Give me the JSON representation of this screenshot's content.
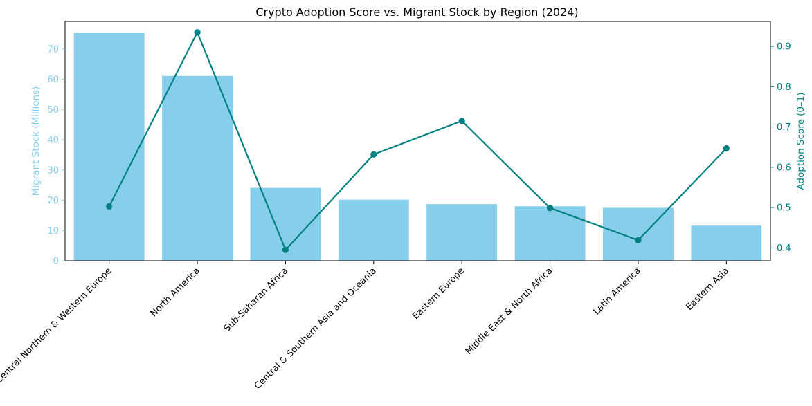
{
  "chart_data": {
    "type": "bar+line",
    "title": "Crypto Adoption Score vs. Migrant Stock by Region (2024)",
    "xlabel": "",
    "categories": [
      "Central Northern & Western Europe",
      "North America",
      "Sub-Saharan Africa",
      "Central & Southern Asia and Oceania",
      "Eastern Europe",
      "Middle East & North Africa",
      "Latin America",
      "Eastern Asia"
    ],
    "bar_series": {
      "axis": "left",
      "values": [
        75.3,
        61.1,
        24.1,
        20.2,
        18.7,
        18.0,
        17.5,
        11.6
      ]
    },
    "line_series": {
      "axis": "right",
      "values": [
        0.503,
        0.935,
        0.395,
        0.632,
        0.715,
        0.499,
        0.419,
        0.647
      ]
    },
    "y_left": {
      "label": "Migrant Stock (Millions)",
      "lim": [
        0,
        79.1
      ],
      "ticks": [
        0,
        10,
        20,
        30,
        40,
        50,
        60,
        70
      ]
    },
    "y_right": {
      "label": "Adoption Score (0–1)",
      "lim": [
        0.368,
        0.962
      ],
      "ticks": [
        0.4,
        0.5,
        0.6,
        0.7,
        0.8,
        0.9
      ],
      "tick_labels": [
        "0.4",
        "0.5",
        "0.6",
        "0.7",
        "0.8",
        "0.9"
      ]
    },
    "grid": false,
    "legend": "none",
    "colors": {
      "bar": "#87ceeb",
      "line": "#008080",
      "axis": "#000000",
      "text": "#000000"
    }
  }
}
